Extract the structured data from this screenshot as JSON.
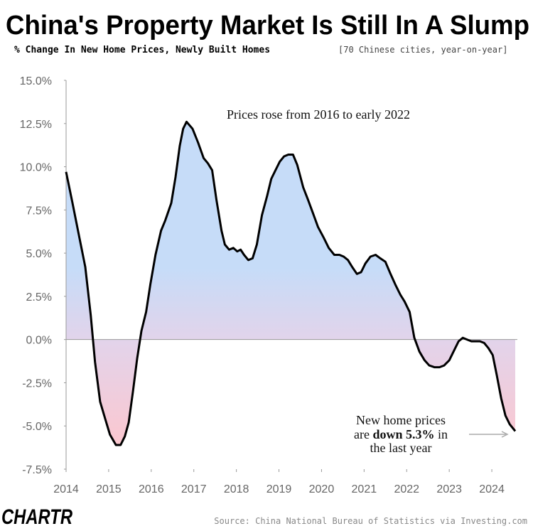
{
  "chart_data": {
    "type": "line",
    "title": "China's Property Market Is Still In A Slump",
    "subtitle": "% Change In New Home Prices, Newly Built Homes",
    "subtitle_note": "[70 Chinese cities, year-on-year]",
    "annotation_top": "Prices rose from 2016 to early 2022",
    "annotation_end": [
      [
        "New home prices"
      ],
      [
        "are ",
        "down 5.3%",
        " in"
      ],
      [
        "the last year"
      ]
    ],
    "source": "Source: China National Bureau of Statistics via Investing.com",
    "logo": "CHARTR",
    "color": "#000000",
    "fill_top": "#c6dcf8",
    "fill_bottom": "#fcc7cf",
    "x": [
      2014.0,
      2014.15,
      2014.32,
      2014.45,
      2014.58,
      2014.68,
      2014.8,
      2014.92,
      2015.03,
      2015.17,
      2015.28,
      2015.38,
      2015.47,
      2015.57,
      2015.67,
      2015.77,
      2015.88,
      2015.98,
      2016.1,
      2016.23,
      2016.33,
      2016.47,
      2016.57,
      2016.67,
      2016.75,
      2016.83,
      2016.97,
      2017.1,
      2017.23,
      2017.33,
      2017.43,
      2017.53,
      2017.65,
      2017.73,
      2017.83,
      2017.93,
      2018.02,
      2018.1,
      2018.18,
      2018.28,
      2018.38,
      2018.48,
      2018.6,
      2018.72,
      2018.82,
      2018.92,
      2019.02,
      2019.12,
      2019.22,
      2019.33,
      2019.43,
      2019.57,
      2019.68,
      2019.8,
      2019.92,
      2020.05,
      2020.17,
      2020.3,
      2020.42,
      2020.52,
      2020.62,
      2020.72,
      2020.83,
      2020.93,
      2021.03,
      2021.15,
      2021.27,
      2021.38,
      2021.5,
      2021.62,
      2021.73,
      2021.85,
      2021.95,
      2022.07,
      2022.18,
      2022.3,
      2022.42,
      2022.53,
      2022.65,
      2022.77,
      2022.88,
      2023.0,
      2023.12,
      2023.22,
      2023.32,
      2023.42,
      2023.52,
      2023.62,
      2023.72,
      2023.82,
      2023.92,
      2024.02,
      2024.12,
      2024.22,
      2024.32,
      2024.42,
      2024.55
    ],
    "values": [
      9.7,
      7.9,
      5.8,
      4.2,
      1.4,
      -1.3,
      -3.6,
      -4.6,
      -5.5,
      -6.1,
      -6.1,
      -5.6,
      -4.8,
      -3.0,
      -1.1,
      0.5,
      1.6,
      3.2,
      4.9,
      6.3,
      6.9,
      7.9,
      9.4,
      11.2,
      12.2,
      12.6,
      12.2,
      11.4,
      10.5,
      10.2,
      9.8,
      8.1,
      6.3,
      5.5,
      5.2,
      5.3,
      5.1,
      5.2,
      4.9,
      4.6,
      4.7,
      5.5,
      7.2,
      8.3,
      9.3,
      9.8,
      10.3,
      10.6,
      10.7,
      10.7,
      10.1,
      8.8,
      8.1,
      7.3,
      6.5,
      5.9,
      5.3,
      4.9,
      4.9,
      4.8,
      4.6,
      4.2,
      3.8,
      3.9,
      4.4,
      4.8,
      4.9,
      4.7,
      4.5,
      3.8,
      3.2,
      2.6,
      2.2,
      1.6,
      0.1,
      -0.7,
      -1.2,
      -1.5,
      -1.6,
      -1.6,
      -1.5,
      -1.2,
      -0.6,
      -0.1,
      0.1,
      0.0,
      -0.1,
      -0.1,
      -0.1,
      -0.2,
      -0.5,
      -0.9,
      -2.1,
      -3.4,
      -4.4,
      -4.9,
      -5.3
    ],
    "xlim": [
      2014,
      2024.6
    ],
    "xticks": [
      2014,
      2015,
      2016,
      2017,
      2018,
      2019,
      2020,
      2021,
      2022,
      2023,
      2024
    ],
    "ylim": [
      -7.5,
      15
    ],
    "yticks": [
      {
        "value": -7.5,
        "label": "-7.5%"
      },
      {
        "value": -5,
        "label": "-5.0%"
      },
      {
        "value": -2.5,
        "label": "-2.5%"
      },
      {
        "value": 0,
        "label": "0.0%"
      },
      {
        "value": 2.5,
        "label": "2.5%"
      },
      {
        "value": 5,
        "label": "5.0%"
      },
      {
        "value": 7.5,
        "label": "7.5%"
      },
      {
        "value": 10,
        "label": "10.0%"
      },
      {
        "value": 12.5,
        "label": "12.5%"
      },
      {
        "value": 15,
        "label": "15.0%"
      }
    ]
  }
}
